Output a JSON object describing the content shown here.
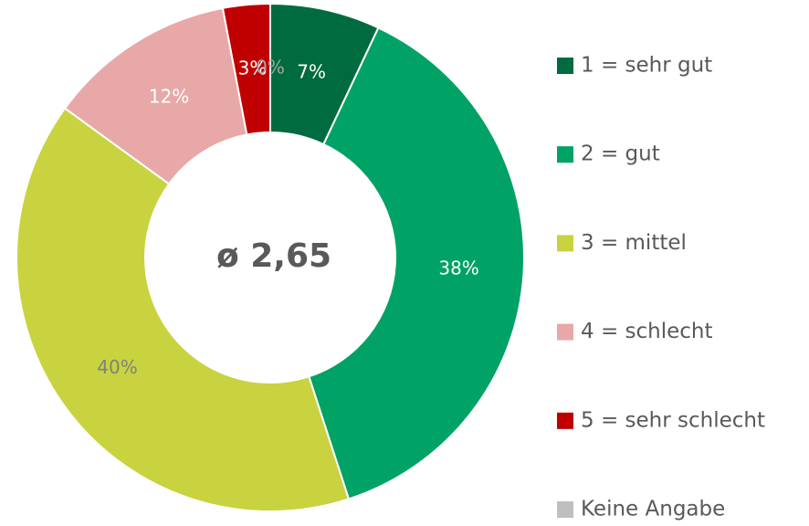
{
  "chart_data": {
    "type": "donut",
    "center_label": "ø 2,65",
    "categories": [
      "1 = sehr gut",
      "2 = gut",
      "3 = mittel",
      "4 = schlecht",
      "5 = sehr schlecht",
      "Keine Angabe"
    ],
    "values": [
      7,
      38,
      40,
      12,
      3,
      0
    ],
    "value_labels": [
      "7%",
      "38%",
      "40%",
      "12%",
      "3%",
      "0%"
    ],
    "colors": [
      "#006b3f",
      "#00a265",
      "#c8d33f",
      "#e8a8a8",
      "#c00000",
      "#bfbfbf"
    ],
    "label_colors": [
      "#ffffff",
      "#ffffff",
      "#808080",
      "#ffffff",
      "#ffffff",
      "#a6a6a6"
    ],
    "legend": "right"
  }
}
